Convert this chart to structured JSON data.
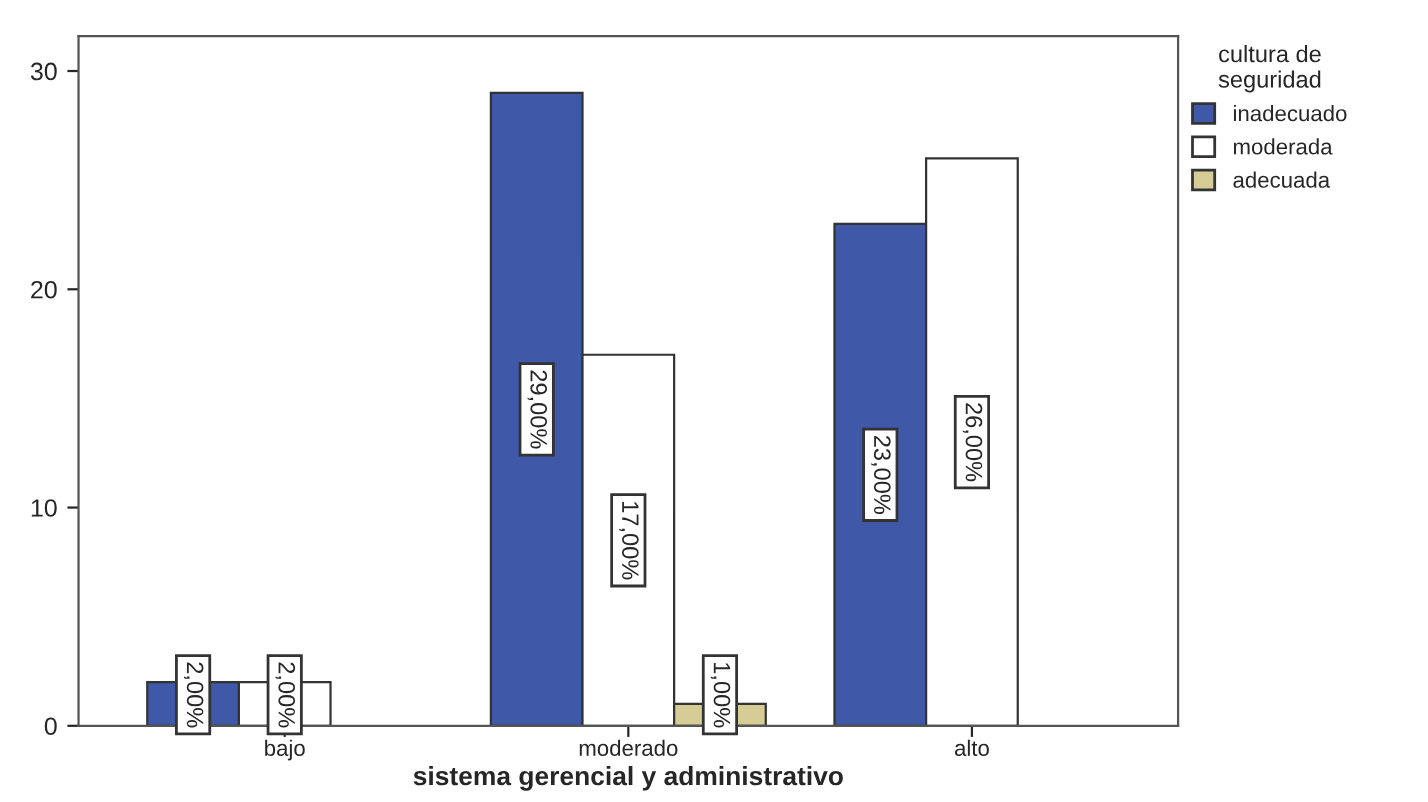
{
  "chart_data": {
    "type": "bar",
    "xlabel": "sistema gerencial y administrativo",
    "legend_title": "cultura de\nseguridad",
    "categories": [
      "bajo",
      "moderado",
      "alto"
    ],
    "series": [
      {
        "name": "inadecuado",
        "color": "#3f58a8",
        "values": [
          2,
          29,
          23
        ],
        "value_labels": [
          "2,00%",
          "29,00%",
          "23,00%"
        ]
      },
      {
        "name": "moderada",
        "color": "#ffffff",
        "values": [
          2,
          17,
          26
        ],
        "value_labels": [
          "2,00%",
          "17,00%",
          "26,00%"
        ]
      },
      {
        "name": "adecuada",
        "color": "#d6cc96",
        "values": [
          null,
          1,
          null
        ],
        "value_labels": [
          null,
          "1,00%",
          null
        ]
      }
    ],
    "ylim": [
      0,
      31.6
    ],
    "yticks": [
      0,
      10,
      20,
      30
    ],
    "grid": false,
    "legend": "top right"
  }
}
